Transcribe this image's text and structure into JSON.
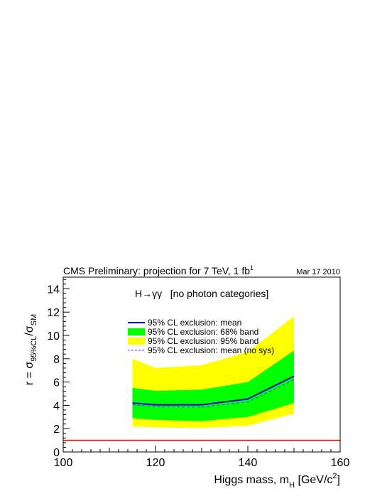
{
  "chart_data": {
    "type": "area",
    "header": {
      "title": "CMS Preliminary: projection for 7 TeV, 1 fb",
      "title_sup": "1",
      "date": "Mar 17 2010"
    },
    "annotation": "H→γγ   [no photon categories]",
    "xlabel": {
      "main": "Higgs mass, m",
      "sub": "H",
      "unit_pre": " [GeV/c",
      "unit_sup": "2",
      "unit_post": "]"
    },
    "ylabel": {
      "r": "r = σ",
      "sub1": "95%CL",
      "slash": "/σ",
      "sub2": "SM"
    },
    "xlim": [
      100,
      160
    ],
    "ylim": [
      0,
      15
    ],
    "x_ticks": [
      100,
      120,
      140,
      160
    ],
    "x_tick_labels": [
      "100",
      "120",
      "140",
      "160"
    ],
    "y_ticks": [
      0,
      2,
      4,
      6,
      8,
      10,
      12,
      14
    ],
    "y_tick_labels": [
      "0",
      "2",
      "4",
      "6",
      "8",
      "10",
      "12",
      "14"
    ],
    "grid": false,
    "legend_position": "top-center",
    "x": [
      115,
      120,
      130,
      140,
      150
    ],
    "series": [
      {
        "name": "95% CL exclusion: 95% band",
        "kind": "band",
        "color": "#ffff00",
        "low": [
          2.2,
          2.1,
          2.05,
          2.25,
          3.3
        ],
        "high": [
          8.0,
          7.2,
          7.45,
          8.6,
          11.65
        ]
      },
      {
        "name": "95% CL exclusion: 68% band",
        "kind": "band",
        "color": "#00ff00",
        "low": [
          2.9,
          2.75,
          2.65,
          3.0,
          4.2
        ],
        "high": [
          5.5,
          5.25,
          5.35,
          6.0,
          8.7
        ]
      },
      {
        "name": "95% CL exclusion: mean",
        "kind": "line",
        "color": "#0000cc",
        "values": [
          4.2,
          4.05,
          4.05,
          4.55,
          6.5
        ]
      },
      {
        "name": "95% CL exclusion: mean (no sys)",
        "kind": "dashed",
        "color": "#4444ff",
        "values": [
          4.05,
          3.9,
          3.85,
          4.3,
          6.2
        ]
      }
    ],
    "reference_line": {
      "y": 1,
      "color": "#ff0000"
    }
  }
}
